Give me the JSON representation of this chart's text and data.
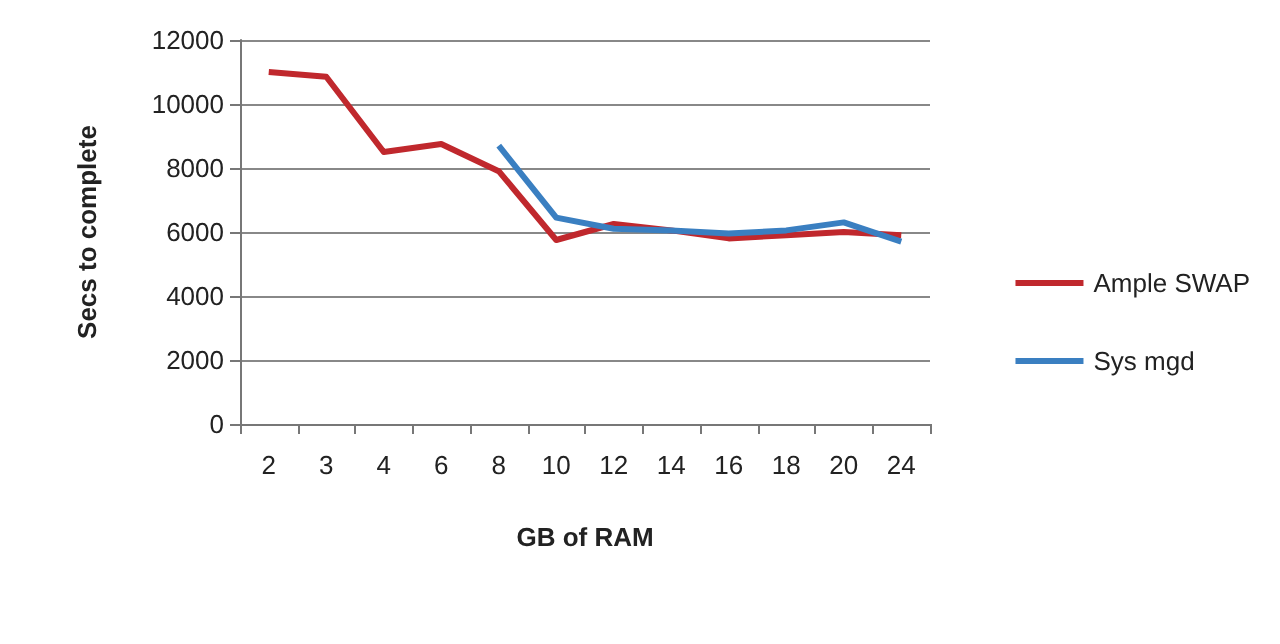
{
  "chart_data": {
    "type": "line",
    "xlabel": "GB of RAM",
    "ylabel": "Secs to complete",
    "categories": [
      "2",
      "3",
      "4",
      "6",
      "8",
      "10",
      "12",
      "14",
      "16",
      "18",
      "20",
      "24"
    ],
    "series": [
      {
        "name": "Ample SWAP",
        "color": "#c0282d",
        "values": [
          11000,
          10850,
          8500,
          8750,
          7900,
          5750,
          6250,
          6050,
          5800,
          5900,
          6000,
          5900
        ]
      },
      {
        "name": "Sys mgd",
        "color": "#3a7fc1",
        "values": [
          null,
          null,
          null,
          null,
          8700,
          6450,
          6100,
          6050,
          5950,
          6050,
          6300,
          5700
        ]
      }
    ],
    "ylim": [
      0,
      12000
    ],
    "yticks": [
      0,
      2000,
      4000,
      6000,
      8000,
      10000,
      12000
    ],
    "grid": "y",
    "legend": "right",
    "marker": "none"
  }
}
